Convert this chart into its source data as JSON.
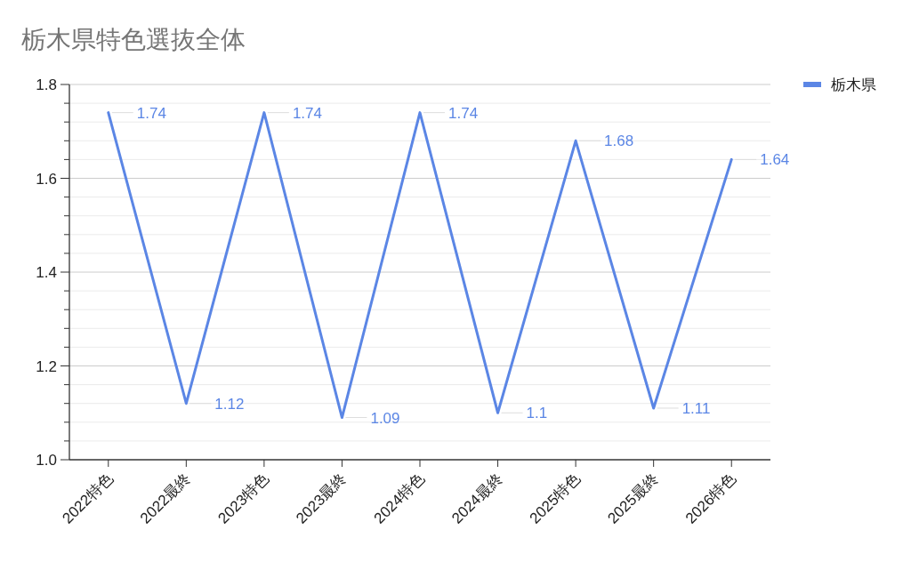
{
  "chart_data": {
    "type": "line",
    "title": "栃木県特色選抜全体",
    "categories": [
      "2022特色",
      "2022最終",
      "2023特色",
      "2023最終",
      "2024特色",
      "2024最終",
      "2025特色",
      "2025最終",
      "2026特色"
    ],
    "series": [
      {
        "name": "栃木県",
        "color": "#5b86e5",
        "values": [
          1.74,
          1.12,
          1.74,
          1.09,
          1.74,
          1.1,
          1.68,
          1.11,
          1.64
        ]
      }
    ],
    "ylim": [
      1.0,
      1.8
    ],
    "yticks": [
      {
        "value": 1.0,
        "label": "1.0"
      },
      {
        "value": 1.04,
        "label": null
      },
      {
        "value": 1.08,
        "label": null
      },
      {
        "value": 1.12,
        "label": null
      },
      {
        "value": 1.16,
        "label": null
      },
      {
        "value": 1.2,
        "label": "1.2"
      },
      {
        "value": 1.24,
        "label": null
      },
      {
        "value": 1.28,
        "label": null
      },
      {
        "value": 1.32,
        "label": null
      },
      {
        "value": 1.36,
        "label": null
      },
      {
        "value": 1.4,
        "label": "1.4"
      },
      {
        "value": 1.44,
        "label": null
      },
      {
        "value": 1.48,
        "label": null
      },
      {
        "value": 1.52,
        "label": null
      },
      {
        "value": 1.56,
        "label": null
      },
      {
        "value": 1.6,
        "label": "1.6"
      },
      {
        "value": 1.64,
        "label": null
      },
      {
        "value": 1.68,
        "label": null
      },
      {
        "value": 1.72,
        "label": null
      },
      {
        "value": 1.76,
        "label": null
      },
      {
        "value": 1.8,
        "label": "1.8"
      }
    ],
    "grid": true,
    "legend": "right",
    "data_labels": true,
    "marker": "none",
    "line_style": "solid"
  }
}
